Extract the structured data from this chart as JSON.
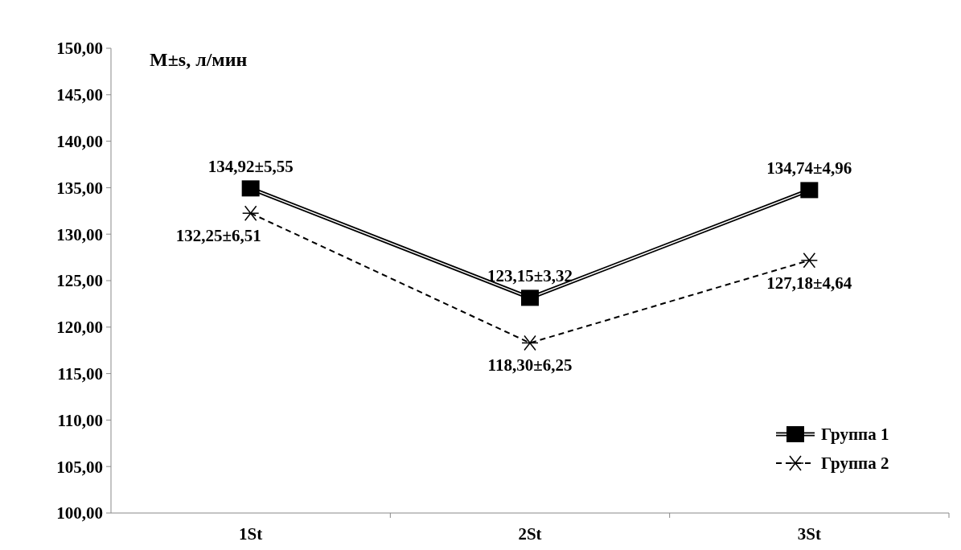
{
  "chart_data": {
    "type": "line",
    "title": "M±s, л/мин",
    "categories": [
      "1St",
      "2St",
      "3St"
    ],
    "ylim": [
      100,
      150
    ],
    "yticks": [
      {
        "value": 100,
        "label": "100,00"
      },
      {
        "value": 105,
        "label": "105,00"
      },
      {
        "value": 110,
        "label": "110,00"
      },
      {
        "value": 115,
        "label": "115,00"
      },
      {
        "value": 120,
        "label": "120,00"
      },
      {
        "value": 125,
        "label": "125,00"
      },
      {
        "value": 130,
        "label": "130,00"
      },
      {
        "value": 135,
        "label": "135,00"
      },
      {
        "value": 140,
        "label": "140,00"
      },
      {
        "value": 145,
        "label": "145,00"
      },
      {
        "value": 150,
        "label": "150,00"
      }
    ],
    "legend": "bottom right",
    "series": [
      {
        "name": "Группа 1",
        "color": "#000000",
        "values": [
          134.92,
          123.15,
          134.74
        ],
        "marker": "square",
        "line_style": "solid",
        "value_labels": [
          "134,92±5,55",
          "123,15±3,32",
          "134,74±4,96"
        ]
      },
      {
        "name": "Группа 2",
        "color": "#000000",
        "values": [
          132.25,
          118.3,
          127.18
        ],
        "marker": "cross",
        "line_style": "dashed",
        "value_labels": [
          "132,25±6,51",
          "118,30±6,25",
          "127,18±4,64"
        ]
      }
    ]
  }
}
